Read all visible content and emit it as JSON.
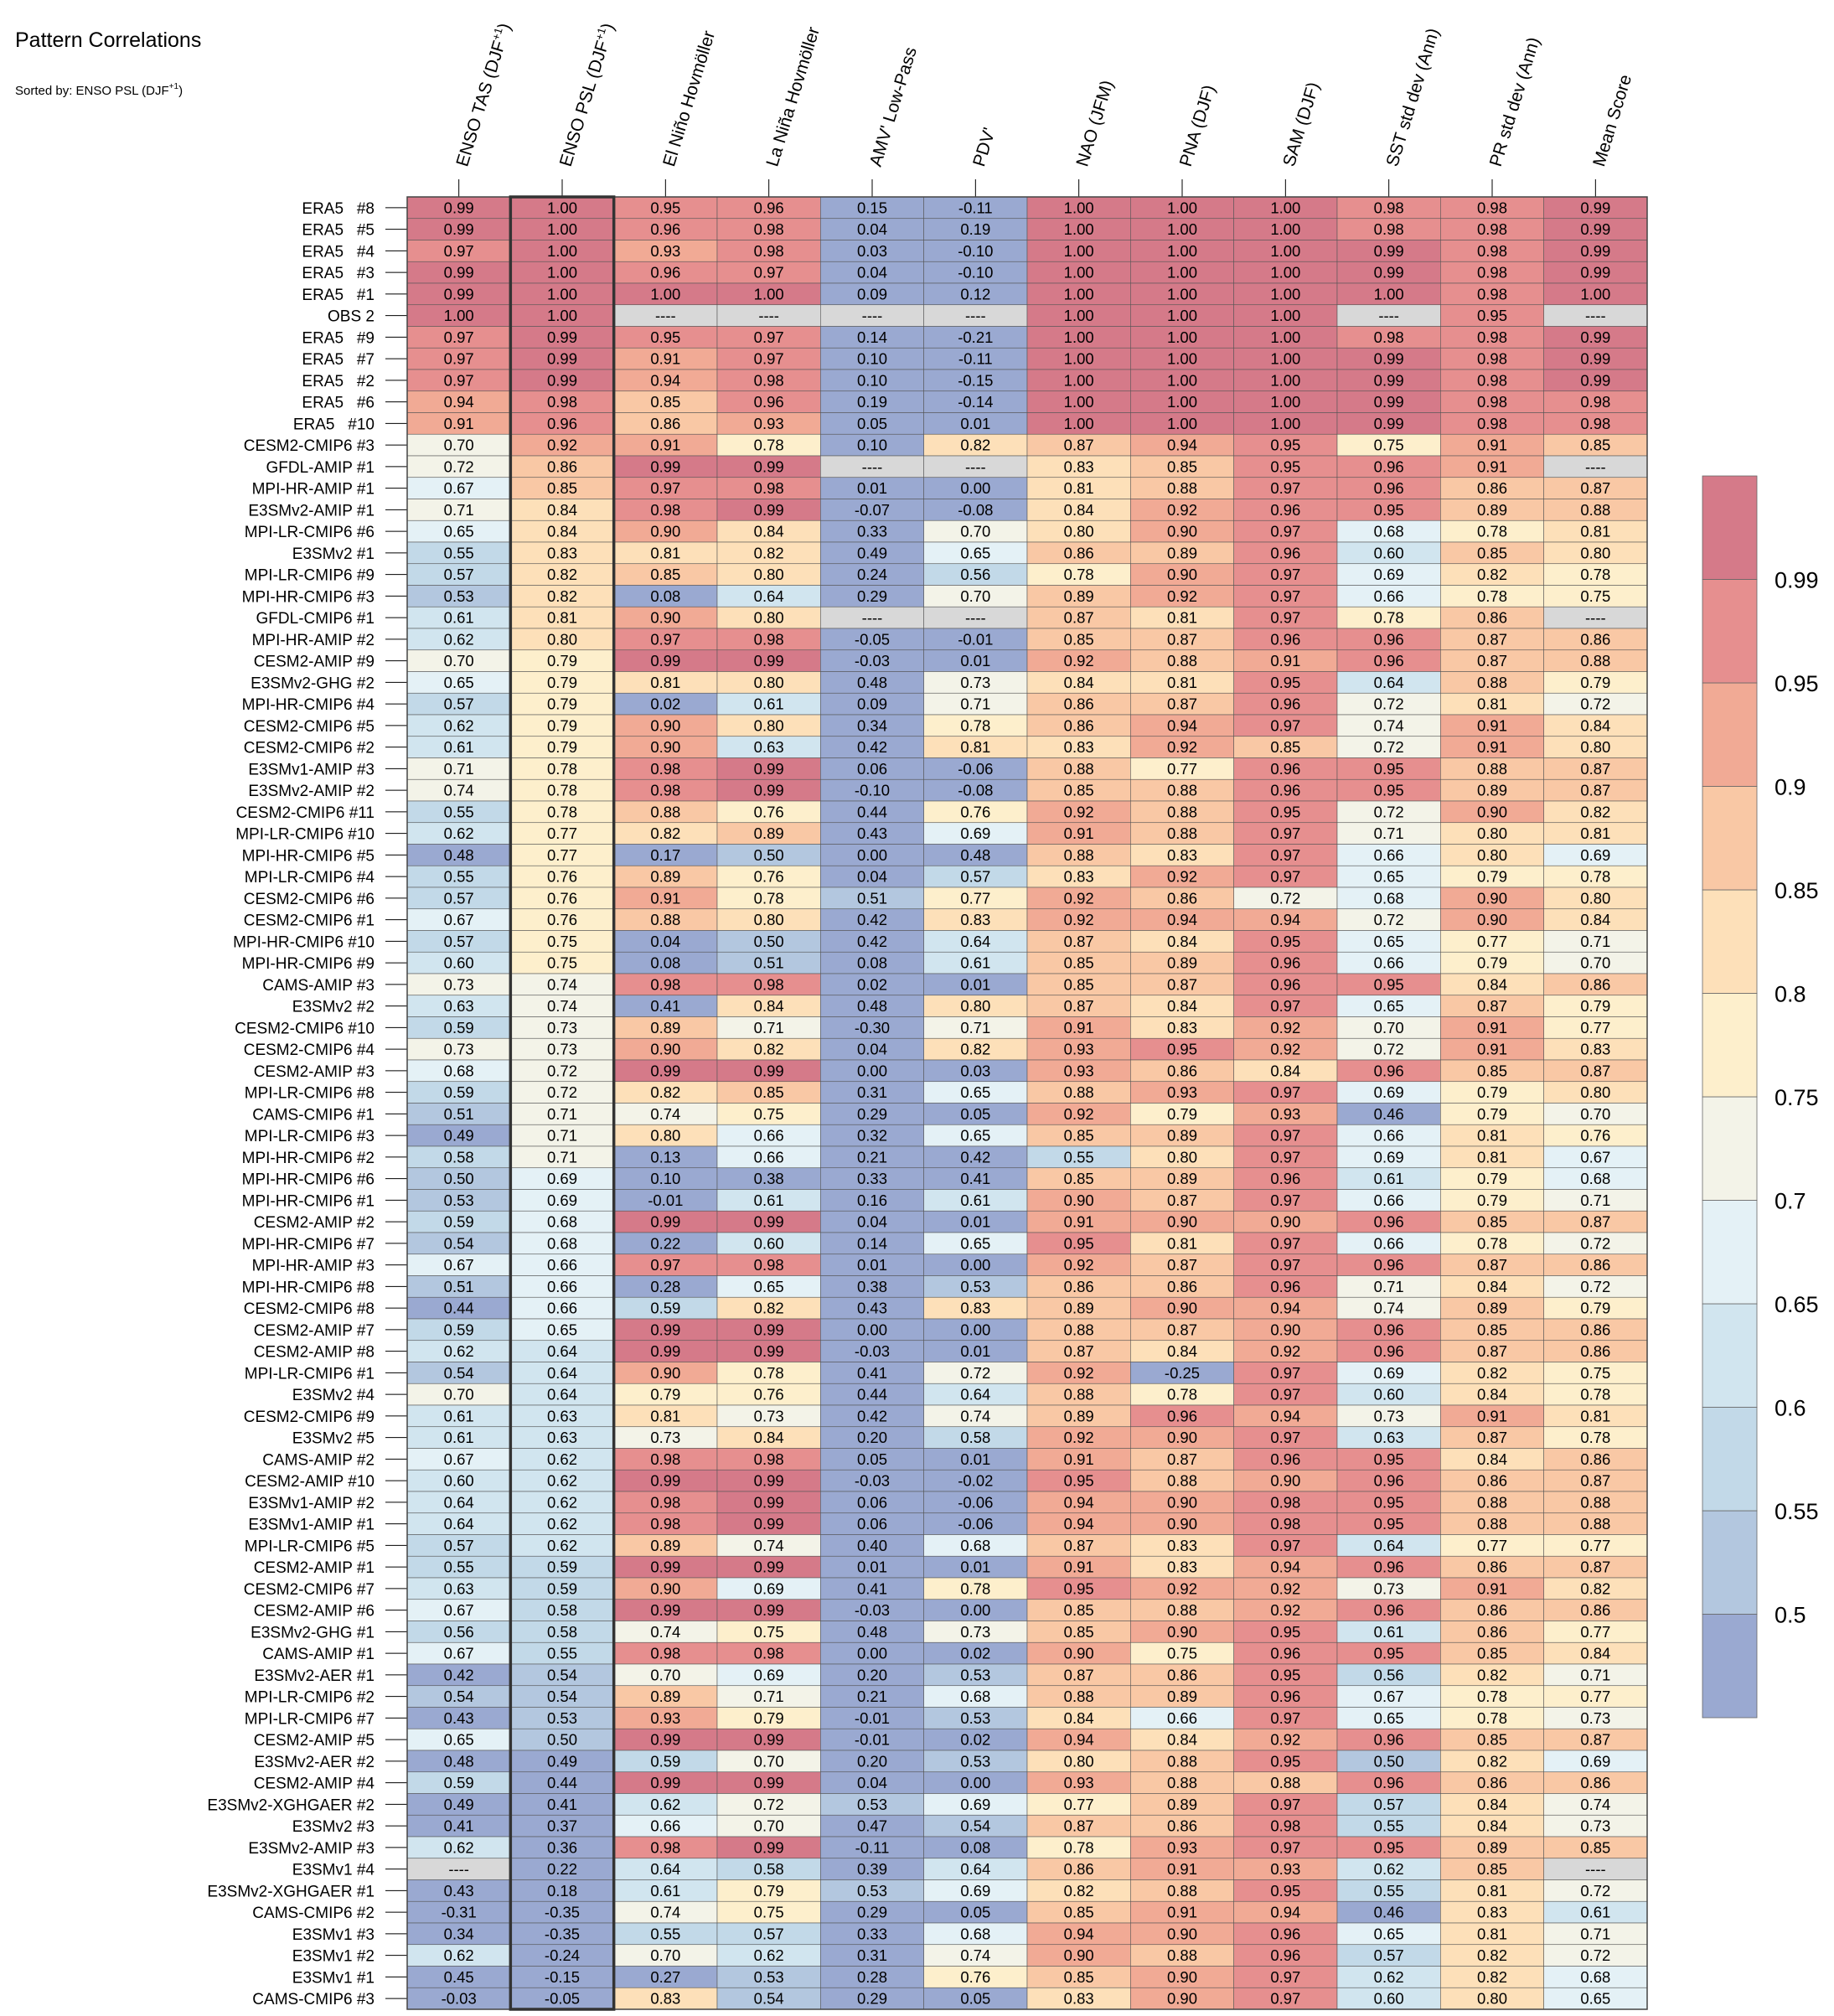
{
  "chart_data": {
    "type": "heatmap",
    "title": "Pattern Correlations",
    "subtitle": "Sorted by: ENSO PSL (DJF+1)",
    "subtitle_main": "Sorted by: ENSO PSL (DJF",
    "subtitle_sup": "+1",
    "subtitle_end": ")",
    "highlighted_column": 1,
    "columns": [
      "ENSO TAS (DJF+1)",
      "ENSO PSL (DJF+1)",
      "El Niño Hovmöller",
      "La Niña Hovmöller",
      "AMV' Low-Pass",
      "PDV'",
      "NAO (JFM)",
      "PNA (DJF)",
      "SAM (DJF)",
      "SST std dev (Ann)",
      "PR std dev (Ann)",
      "Mean Score"
    ],
    "column_labels": [
      {
        "main": "ENSO TAS (DJF",
        "sup": "+1",
        "end": ")"
      },
      {
        "main": "ENSO PSL (DJF",
        "sup": "+1",
        "end": ")"
      },
      {
        "main": "El Niño Hovmöller",
        "sup": "",
        "end": ""
      },
      {
        "main": "La Niña Hovmöller",
        "sup": "",
        "end": ""
      },
      {
        "main": "AMV' Low-Pass",
        "sup": "",
        "end": ""
      },
      {
        "main": "PDV'",
        "sup": "",
        "end": ""
      },
      {
        "main": "NAO (JFM)",
        "sup": "",
        "end": ""
      },
      {
        "main": "PNA (DJF)",
        "sup": "",
        "end": ""
      },
      {
        "main": "SAM (DJF)",
        "sup": "",
        "end": ""
      },
      {
        "main": "SST std dev (Ann)",
        "sup": "",
        "end": ""
      },
      {
        "main": "PR std dev (Ann)",
        "sup": "",
        "end": ""
      },
      {
        "main": "Mean Score",
        "sup": "",
        "end": ""
      }
    ],
    "rows": [
      "ERA5   #8",
      "ERA5   #5",
      "ERA5   #4",
      "ERA5   #3",
      "ERA5   #1",
      "OBS 2",
      "ERA5   #9",
      "ERA5   #7",
      "ERA5   #2",
      "ERA5   #6",
      "ERA5   #10",
      "CESM2-CMIP6 #3",
      "GFDL-AMIP #1",
      "MPI-HR-AMIP #1",
      "E3SMv2-AMIP #1",
      "MPI-LR-CMIP6 #6",
      "E3SMv2 #1",
      "MPI-LR-CMIP6 #9",
      "MPI-HR-CMIP6 #3",
      "GFDL-CMIP6 #1",
      "MPI-HR-AMIP #2",
      "CESM2-AMIP #9",
      "E3SMv2-GHG #2",
      "MPI-HR-CMIP6 #4",
      "CESM2-CMIP6 #5",
      "CESM2-CMIP6 #2",
      "E3SMv1-AMIP #3",
      "E3SMv2-AMIP #2",
      "CESM2-CMIP6 #11",
      "MPI-LR-CMIP6 #10",
      "MPI-HR-CMIP6 #5",
      "MPI-LR-CMIP6 #4",
      "CESM2-CMIP6 #6",
      "CESM2-CMIP6 #1",
      "MPI-HR-CMIP6 #10",
      "MPI-HR-CMIP6 #9",
      "CAMS-AMIP #3",
      "E3SMv2 #2",
      "CESM2-CMIP6 #10",
      "CESM2-CMIP6 #4",
      "CESM2-AMIP #3",
      "MPI-LR-CMIP6 #8",
      "CAMS-CMIP6 #1",
      "MPI-LR-CMIP6 #3",
      "MPI-HR-CMIP6 #2",
      "MPI-HR-CMIP6 #6",
      "MPI-HR-CMIP6 #1",
      "CESM2-AMIP #2",
      "MPI-HR-CMIP6 #7",
      "MPI-HR-AMIP #3",
      "MPI-HR-CMIP6 #8",
      "CESM2-CMIP6 #8",
      "CESM2-AMIP #7",
      "CESM2-AMIP #8",
      "MPI-LR-CMIP6 #1",
      "E3SMv2 #4",
      "CESM2-CMIP6 #9",
      "E3SMv2 #5",
      "CAMS-AMIP #2",
      "CESM2-AMIP #10",
      "E3SMv1-AMIP #2",
      "E3SMv1-AMIP #1",
      "MPI-LR-CMIP6 #5",
      "CESM2-AMIP #1",
      "CESM2-CMIP6 #7",
      "CESM2-AMIP #6",
      "E3SMv2-GHG #1",
      "CAMS-AMIP #1",
      "E3SMv2-AER #1",
      "MPI-LR-CMIP6 #2",
      "MPI-LR-CMIP6 #7",
      "CESM2-AMIP #5",
      "E3SMv2-AER #2",
      "CESM2-AMIP #4",
      "E3SMv2-XGHGAER #2",
      "E3SMv2 #3",
      "E3SMv2-AMIP #3",
      "E3SMv1 #4",
      "E3SMv2-XGHGAER #1",
      "CAMS-CMIP6 #2",
      "E3SMv1 #3",
      "E3SMv1 #2",
      "E3SMv1 #1",
      "CAMS-CMIP6 #3"
    ],
    "values": [
      [
        0.99,
        1.0,
        0.95,
        0.96,
        0.15,
        -0.11,
        1.0,
        1.0,
        1.0,
        0.98,
        0.98,
        0.99
      ],
      [
        0.99,
        1.0,
        0.96,
        0.98,
        0.04,
        0.19,
        1.0,
        1.0,
        1.0,
        0.98,
        0.98,
        0.99
      ],
      [
        0.97,
        1.0,
        0.93,
        0.98,
        0.03,
        -0.1,
        1.0,
        1.0,
        1.0,
        0.99,
        0.98,
        0.99
      ],
      [
        0.99,
        1.0,
        0.96,
        0.97,
        0.04,
        -0.1,
        1.0,
        1.0,
        1.0,
        0.99,
        0.98,
        0.99
      ],
      [
        0.99,
        1.0,
        1.0,
        1.0,
        0.09,
        0.12,
        1.0,
        1.0,
        1.0,
        1.0,
        0.98,
        1.0
      ],
      [
        1.0,
        1.0,
        null,
        null,
        null,
        null,
        1.0,
        1.0,
        1.0,
        null,
        0.95,
        null
      ],
      [
        0.97,
        0.99,
        0.95,
        0.97,
        0.14,
        -0.21,
        1.0,
        1.0,
        1.0,
        0.98,
        0.98,
        0.99
      ],
      [
        0.97,
        0.99,
        0.91,
        0.97,
        0.1,
        -0.11,
        1.0,
        1.0,
        1.0,
        0.99,
        0.98,
        0.99
      ],
      [
        0.97,
        0.99,
        0.94,
        0.98,
        0.1,
        -0.15,
        1.0,
        1.0,
        1.0,
        0.99,
        0.98,
        0.99
      ],
      [
        0.94,
        0.98,
        0.85,
        0.96,
        0.19,
        -0.14,
        1.0,
        1.0,
        1.0,
        0.99,
        0.98,
        0.98
      ],
      [
        0.91,
        0.96,
        0.86,
        0.93,
        0.05,
        0.01,
        1.0,
        1.0,
        1.0,
        0.99,
        0.98,
        0.98
      ],
      [
        0.7,
        0.92,
        0.91,
        0.78,
        0.1,
        0.82,
        0.87,
        0.94,
        0.95,
        0.75,
        0.91,
        0.85
      ],
      [
        0.72,
        0.86,
        0.99,
        0.99,
        null,
        null,
        0.83,
        0.85,
        0.95,
        0.96,
        0.91,
        null
      ],
      [
        0.67,
        0.85,
        0.97,
        0.98,
        0.01,
        -0.0,
        0.81,
        0.88,
        0.97,
        0.96,
        0.86,
        0.87
      ],
      [
        0.71,
        0.84,
        0.98,
        0.99,
        -0.07,
        -0.08,
        0.84,
        0.92,
        0.96,
        0.95,
        0.89,
        0.88
      ],
      [
        0.65,
        0.84,
        0.9,
        0.84,
        0.33,
        0.7,
        0.8,
        0.9,
        0.97,
        0.68,
        0.78,
        0.81
      ],
      [
        0.55,
        0.83,
        0.81,
        0.82,
        0.49,
        0.65,
        0.86,
        0.89,
        0.96,
        0.6,
        0.85,
        0.8
      ],
      [
        0.57,
        0.82,
        0.85,
        0.8,
        0.24,
        0.56,
        0.78,
        0.9,
        0.97,
        0.69,
        0.82,
        0.78
      ],
      [
        0.53,
        0.82,
        0.08,
        0.64,
        0.29,
        0.7,
        0.89,
        0.92,
        0.97,
        0.66,
        0.78,
        0.75
      ],
      [
        0.61,
        0.81,
        0.9,
        0.8,
        null,
        null,
        0.87,
        0.81,
        0.97,
        0.78,
        0.86,
        null
      ],
      [
        0.62,
        0.8,
        0.97,
        0.98,
        -0.05,
        -0.01,
        0.85,
        0.87,
        0.96,
        0.96,
        0.87,
        0.86
      ],
      [
        0.7,
        0.79,
        0.99,
        0.99,
        -0.03,
        0.01,
        0.92,
        0.88,
        0.91,
        0.96,
        0.87,
        0.88
      ],
      [
        0.65,
        0.79,
        0.81,
        0.8,
        0.48,
        0.73,
        0.84,
        0.81,
        0.95,
        0.64,
        0.88,
        0.79
      ],
      [
        0.57,
        0.79,
        0.02,
        0.61,
        0.09,
        0.71,
        0.86,
        0.87,
        0.96,
        0.72,
        0.81,
        0.72
      ],
      [
        0.62,
        0.79,
        0.9,
        0.8,
        0.34,
        0.78,
        0.86,
        0.94,
        0.97,
        0.74,
        0.91,
        0.84
      ],
      [
        0.61,
        0.79,
        0.9,
        0.63,
        0.42,
        0.81,
        0.83,
        0.92,
        0.85,
        0.72,
        0.91,
        0.8
      ],
      [
        0.71,
        0.78,
        0.98,
        0.99,
        0.06,
        -0.06,
        0.88,
        0.77,
        0.96,
        0.95,
        0.88,
        0.87
      ],
      [
        0.74,
        0.78,
        0.98,
        0.99,
        -0.1,
        -0.08,
        0.85,
        0.88,
        0.96,
        0.95,
        0.89,
        0.87
      ],
      [
        0.55,
        0.78,
        0.88,
        0.76,
        0.44,
        0.76,
        0.92,
        0.88,
        0.95,
        0.72,
        0.9,
        0.82
      ],
      [
        0.62,
        0.77,
        0.82,
        0.89,
        0.43,
        0.69,
        0.91,
        0.88,
        0.97,
        0.71,
        0.8,
        0.81
      ],
      [
        0.48,
        0.77,
        0.17,
        0.5,
        0.0,
        0.48,
        0.88,
        0.83,
        0.97,
        0.66,
        0.8,
        0.69
      ],
      [
        0.55,
        0.76,
        0.89,
        0.76,
        0.04,
        0.57,
        0.83,
        0.92,
        0.97,
        0.65,
        0.79,
        0.78
      ],
      [
        0.57,
        0.76,
        0.91,
        0.78,
        0.51,
        0.77,
        0.92,
        0.86,
        0.72,
        0.68,
        0.9,
        0.8
      ],
      [
        0.67,
        0.76,
        0.88,
        0.8,
        0.42,
        0.83,
        0.92,
        0.94,
        0.94,
        0.72,
        0.9,
        0.84
      ],
      [
        0.57,
        0.75,
        0.04,
        0.5,
        0.42,
        0.64,
        0.87,
        0.84,
        0.95,
        0.65,
        0.77,
        0.71
      ],
      [
        0.6,
        0.75,
        0.08,
        0.51,
        0.08,
        0.61,
        0.85,
        0.89,
        0.96,
        0.66,
        0.79,
        0.7
      ],
      [
        0.73,
        0.74,
        0.98,
        0.98,
        0.02,
        0.01,
        0.85,
        0.87,
        0.96,
        0.95,
        0.84,
        0.86
      ],
      [
        0.63,
        0.74,
        0.41,
        0.84,
        0.48,
        0.8,
        0.87,
        0.84,
        0.97,
        0.65,
        0.87,
        0.79
      ],
      [
        0.59,
        0.73,
        0.89,
        0.71,
        -0.3,
        0.71,
        0.91,
        0.83,
        0.92,
        0.7,
        0.91,
        0.77
      ],
      [
        0.73,
        0.73,
        0.9,
        0.82,
        0.04,
        0.82,
        0.93,
        0.95,
        0.92,
        0.72,
        0.91,
        0.83
      ],
      [
        0.68,
        0.72,
        0.99,
        0.99,
        0.0,
        0.03,
        0.93,
        0.86,
        0.84,
        0.96,
        0.85,
        0.87
      ],
      [
        0.59,
        0.72,
        0.82,
        0.85,
        0.31,
        0.65,
        0.88,
        0.93,
        0.97,
        0.69,
        0.79,
        0.8
      ],
      [
        0.51,
        0.71,
        0.74,
        0.75,
        0.29,
        0.05,
        0.92,
        0.79,
        0.93,
        0.46,
        0.79,
        0.7
      ],
      [
        0.49,
        0.71,
        0.8,
        0.66,
        0.32,
        0.65,
        0.85,
        0.89,
        0.97,
        0.66,
        0.81,
        0.76
      ],
      [
        0.58,
        0.71,
        0.13,
        0.66,
        0.21,
        0.42,
        0.55,
        0.8,
        0.97,
        0.69,
        0.81,
        0.67
      ],
      [
        0.5,
        0.69,
        0.1,
        0.38,
        0.33,
        0.41,
        0.85,
        0.89,
        0.96,
        0.61,
        0.79,
        0.68
      ],
      [
        0.53,
        0.69,
        -0.01,
        0.61,
        0.16,
        0.61,
        0.9,
        0.87,
        0.97,
        0.66,
        0.79,
        0.71
      ],
      [
        0.59,
        0.68,
        0.99,
        0.99,
        0.04,
        0.01,
        0.91,
        0.9,
        0.9,
        0.96,
        0.85,
        0.87
      ],
      [
        0.54,
        0.68,
        0.22,
        0.6,
        0.14,
        0.65,
        0.95,
        0.81,
        0.97,
        0.66,
        0.78,
        0.72
      ],
      [
        0.67,
        0.66,
        0.97,
        0.98,
        0.01,
        0.0,
        0.92,
        0.87,
        0.97,
        0.96,
        0.87,
        0.86
      ],
      [
        0.51,
        0.66,
        0.28,
        0.65,
        0.38,
        0.53,
        0.86,
        0.86,
        0.96,
        0.71,
        0.84,
        0.72
      ],
      [
        0.44,
        0.66,
        0.59,
        0.82,
        0.43,
        0.83,
        0.89,
        0.9,
        0.94,
        0.74,
        0.89,
        0.79
      ],
      [
        0.59,
        0.65,
        0.99,
        0.99,
        0.0,
        0.0,
        0.88,
        0.87,
        0.9,
        0.96,
        0.85,
        0.86
      ],
      [
        0.62,
        0.64,
        0.99,
        0.99,
        -0.03,
        0.01,
        0.87,
        0.84,
        0.92,
        0.96,
        0.87,
        0.86
      ],
      [
        0.54,
        0.64,
        0.9,
        0.78,
        0.41,
        0.72,
        0.92,
        -0.25,
        0.97,
        0.69,
        0.82,
        0.75
      ],
      [
        0.7,
        0.64,
        0.79,
        0.76,
        0.44,
        0.64,
        0.88,
        0.78,
        0.97,
        0.6,
        0.84,
        0.78
      ],
      [
        0.61,
        0.63,
        0.81,
        0.73,
        0.42,
        0.74,
        0.89,
        0.96,
        0.94,
        0.73,
        0.91,
        0.81
      ],
      [
        0.61,
        0.63,
        0.73,
        0.84,
        0.2,
        0.58,
        0.92,
        0.9,
        0.97,
        0.63,
        0.87,
        0.78
      ],
      [
        0.67,
        0.62,
        0.98,
        0.98,
        0.05,
        0.01,
        0.91,
        0.87,
        0.96,
        0.95,
        0.84,
        0.86
      ],
      [
        0.6,
        0.62,
        0.99,
        0.99,
        -0.03,
        -0.02,
        0.95,
        0.88,
        0.9,
        0.96,
        0.86,
        0.87
      ],
      [
        0.64,
        0.62,
        0.98,
        0.99,
        0.06,
        -0.06,
        0.94,
        0.9,
        0.98,
        0.95,
        0.88,
        0.88
      ],
      [
        0.64,
        0.62,
        0.98,
        0.99,
        0.06,
        -0.06,
        0.94,
        0.9,
        0.98,
        0.95,
        0.88,
        0.88
      ],
      [
        0.57,
        0.62,
        0.89,
        0.74,
        0.4,
        0.68,
        0.87,
        0.83,
        0.97,
        0.64,
        0.77,
        0.77
      ],
      [
        0.55,
        0.59,
        0.99,
        0.99,
        0.01,
        0.01,
        0.91,
        0.83,
        0.94,
        0.96,
        0.86,
        0.87
      ],
      [
        0.63,
        0.59,
        0.9,
        0.69,
        0.41,
        0.78,
        0.95,
        0.92,
        0.92,
        0.73,
        0.91,
        0.82
      ],
      [
        0.67,
        0.58,
        0.99,
        0.99,
        -0.03,
        -0.0,
        0.85,
        0.88,
        0.92,
        0.96,
        0.86,
        0.86
      ],
      [
        0.56,
        0.58,
        0.74,
        0.75,
        0.48,
        0.73,
        0.85,
        0.9,
        0.95,
        0.61,
        0.86,
        0.77
      ],
      [
        0.67,
        0.55,
        0.98,
        0.98,
        0.0,
        0.02,
        0.9,
        0.75,
        0.96,
        0.95,
        0.85,
        0.84
      ],
      [
        0.42,
        0.54,
        0.7,
        0.69,
        0.2,
        0.53,
        0.87,
        0.86,
        0.95,
        0.56,
        0.82,
        0.71
      ],
      [
        0.54,
        0.54,
        0.89,
        0.71,
        0.21,
        0.68,
        0.88,
        0.89,
        0.96,
        0.67,
        0.78,
        0.77
      ],
      [
        0.43,
        0.53,
        0.93,
        0.79,
        -0.01,
        0.53,
        0.84,
        0.66,
        0.97,
        0.65,
        0.78,
        0.73
      ],
      [
        0.65,
        0.5,
        0.99,
        0.99,
        -0.01,
        0.02,
        0.94,
        0.84,
        0.92,
        0.96,
        0.85,
        0.87
      ],
      [
        0.48,
        0.49,
        0.59,
        0.7,
        0.2,
        0.53,
        0.8,
        0.88,
        0.95,
        0.5,
        0.82,
        0.69
      ],
      [
        0.59,
        0.44,
        0.99,
        0.99,
        0.04,
        0.0,
        0.93,
        0.88,
        0.88,
        0.96,
        0.86,
        0.86
      ],
      [
        0.49,
        0.41,
        0.62,
        0.72,
        0.53,
        0.69,
        0.77,
        0.89,
        0.97,
        0.57,
        0.84,
        0.74
      ],
      [
        0.41,
        0.37,
        0.66,
        0.7,
        0.47,
        0.54,
        0.87,
        0.86,
        0.98,
        0.55,
        0.84,
        0.73
      ],
      [
        0.62,
        0.36,
        0.98,
        0.99,
        -0.11,
        0.08,
        0.78,
        0.93,
        0.97,
        0.95,
        0.89,
        0.85
      ],
      [
        null,
        0.22,
        0.64,
        0.58,
        0.39,
        0.64,
        0.86,
        0.91,
        0.93,
        0.62,
        0.85,
        null
      ],
      [
        0.43,
        0.18,
        0.61,
        0.79,
        0.53,
        0.69,
        0.82,
        0.88,
        0.95,
        0.55,
        0.81,
        0.72
      ],
      [
        -0.31,
        -0.35,
        0.74,
        0.75,
        0.29,
        0.05,
        0.85,
        0.91,
        0.94,
        0.46,
        0.83,
        0.61
      ],
      [
        0.34,
        -0.35,
        0.55,
        0.57,
        0.33,
        0.68,
        0.94,
        0.9,
        0.96,
        0.65,
        0.81,
        0.71
      ],
      [
        0.62,
        -0.24,
        0.7,
        0.62,
        0.31,
        0.74,
        0.9,
        0.88,
        0.96,
        0.57,
        0.82,
        0.72
      ],
      [
        0.45,
        -0.15,
        0.27,
        0.53,
        0.28,
        0.76,
        0.85,
        0.9,
        0.97,
        0.62,
        0.82,
        0.68
      ],
      [
        -0.03,
        -0.05,
        0.83,
        0.54,
        0.29,
        0.05,
        0.83,
        0.9,
        0.97,
        0.6,
        0.8,
        0.65
      ]
    ],
    "missing_label": "----",
    "colorbar": {
      "ticks": [
        "0.5",
        "0.55",
        "0.6",
        "0.65",
        "0.7",
        "0.75",
        "0.8",
        "0.85",
        "0.9",
        "0.95",
        "0.99"
      ],
      "levels": [
        0.5,
        0.55,
        0.6,
        0.65,
        0.7,
        0.75,
        0.8,
        0.85,
        0.9,
        0.95,
        0.99
      ],
      "colors": [
        "#9aa9d1",
        "#b3c7df",
        "#c2d9e8",
        "#d1e5ef",
        "#e4f1f6",
        "#f3f3e8",
        "#fdefcc",
        "#fde0b9",
        "#f9c8a5",
        "#f1aa95",
        "#e68f8f",
        "#d57a89"
      ],
      "missing_color": "#d8d8d8"
    }
  }
}
